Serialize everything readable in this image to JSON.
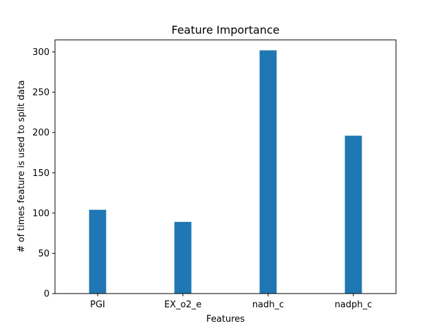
{
  "chart_data": {
    "type": "bar",
    "title": "Feature Importance",
    "xlabel": "Features",
    "ylabel": "# of times feature is used to split data",
    "categories": [
      "PGI",
      "EX_o2_e",
      "nadh_c",
      "nadph_c"
    ],
    "values": [
      104,
      89,
      302,
      196
    ],
    "ylim": [
      0,
      315
    ],
    "yticks": [
      0,
      50,
      100,
      150,
      200,
      250,
      300
    ],
    "grid": false,
    "bar_color": "#1f77b4"
  }
}
